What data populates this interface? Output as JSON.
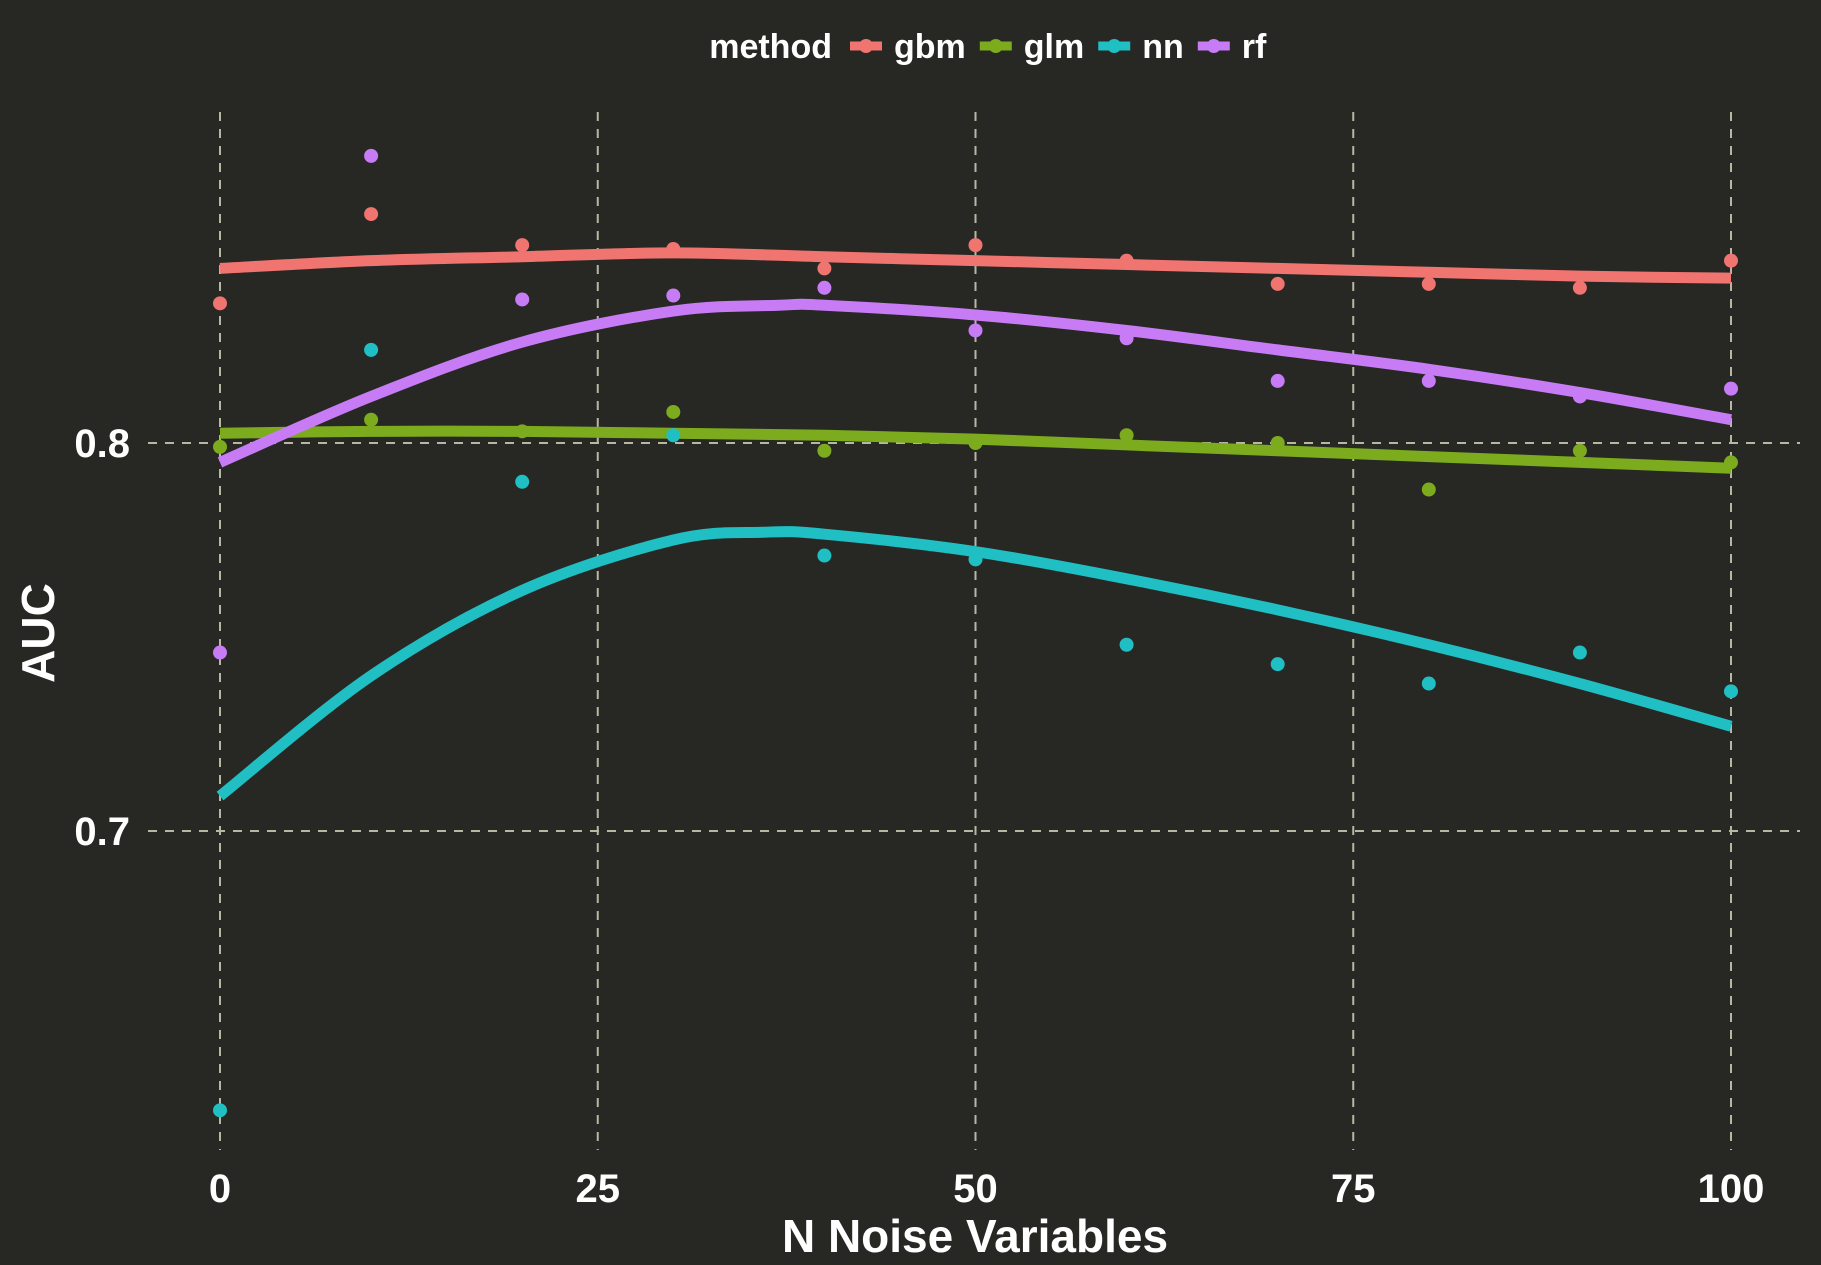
{
  "chart_data": {
    "type": "scatter",
    "title": "",
    "xlabel": "N Noise Variables",
    "ylabel": "AUC",
    "xlim": [
      0,
      100
    ],
    "ylim": [
      0.6,
      0.89
    ],
    "x_ticks": [
      0,
      25,
      50,
      75,
      100
    ],
    "x_tick_labels": [
      "0",
      "25",
      "50",
      "75",
      "100"
    ],
    "y_ticks": [
      0.7,
      0.8
    ],
    "y_tick_labels": [
      "0.7",
      "0.8"
    ],
    "grid": true,
    "background": "#272724",
    "legend": {
      "title": "method",
      "position": "top"
    },
    "series": [
      {
        "name": "gbm",
        "color": "#f07470",
        "points": [
          [
            0,
            0.836
          ],
          [
            10,
            0.859
          ],
          [
            20,
            0.851
          ],
          [
            30,
            0.85
          ],
          [
            40,
            0.845
          ],
          [
            50,
            0.851
          ],
          [
            60,
            0.847
          ],
          [
            70,
            0.841
          ],
          [
            80,
            0.841
          ],
          [
            90,
            0.84
          ],
          [
            100,
            0.847
          ]
        ],
        "smooth": [
          [
            0,
            0.845
          ],
          [
            10,
            0.847
          ],
          [
            20,
            0.848
          ],
          [
            30,
            0.849
          ],
          [
            40,
            0.848
          ],
          [
            50,
            0.847
          ],
          [
            60,
            0.846
          ],
          [
            70,
            0.845
          ],
          [
            80,
            0.844
          ],
          [
            90,
            0.843
          ],
          [
            100,
            0.8425
          ]
        ]
      },
      {
        "name": "glm",
        "color": "#7cab1e",
        "points": [
          [
            0,
            0.799
          ],
          [
            10,
            0.806
          ],
          [
            20,
            0.803
          ],
          [
            30,
            0.808
          ],
          [
            40,
            0.798
          ],
          [
            50,
            0.8
          ],
          [
            60,
            0.802
          ],
          [
            70,
            0.8
          ],
          [
            80,
            0.788
          ],
          [
            90,
            0.798
          ],
          [
            100,
            0.795
          ]
        ],
        "smooth": [
          [
            0,
            0.8025
          ],
          [
            10,
            0.803
          ],
          [
            20,
            0.803
          ],
          [
            30,
            0.8025
          ],
          [
            40,
            0.802
          ],
          [
            50,
            0.801
          ],
          [
            60,
            0.7995
          ],
          [
            70,
            0.798
          ],
          [
            80,
            0.7965
          ],
          [
            90,
            0.795
          ],
          [
            100,
            0.7935
          ]
        ]
      },
      {
        "name": "nn",
        "color": "#1fbfc3",
        "points": [
          [
            0,
            0.628
          ],
          [
            10,
            0.824
          ],
          [
            20,
            0.79
          ],
          [
            30,
            0.802
          ],
          [
            40,
            0.771
          ],
          [
            50,
            0.77
          ],
          [
            60,
            0.748
          ],
          [
            70,
            0.743
          ],
          [
            80,
            0.738
          ],
          [
            90,
            0.746
          ],
          [
            100,
            0.736
          ]
        ],
        "smooth": [
          [
            0,
            0.709
          ],
          [
            10,
            0.74
          ],
          [
            20,
            0.762
          ],
          [
            30,
            0.775
          ],
          [
            36,
            0.777
          ],
          [
            40,
            0.7765
          ],
          [
            50,
            0.772
          ],
          [
            60,
            0.765
          ],
          [
            70,
            0.757
          ],
          [
            80,
            0.748
          ],
          [
            90,
            0.738
          ],
          [
            100,
            0.727
          ]
        ]
      },
      {
        "name": "rf",
        "color": "#c77cf5",
        "points": [
          [
            0,
            0.746
          ],
          [
            10,
            0.874
          ],
          [
            20,
            0.837
          ],
          [
            30,
            0.838
          ],
          [
            40,
            0.84
          ],
          [
            50,
            0.829
          ],
          [
            60,
            0.827
          ],
          [
            70,
            0.816
          ],
          [
            80,
            0.816
          ],
          [
            90,
            0.812
          ],
          [
            100,
            0.814
          ]
        ],
        "smooth": [
          [
            0,
            0.795
          ],
          [
            10,
            0.812
          ],
          [
            20,
            0.826
          ],
          [
            30,
            0.834
          ],
          [
            37,
            0.8355
          ],
          [
            40,
            0.8355
          ],
          [
            50,
            0.833
          ],
          [
            60,
            0.829
          ],
          [
            70,
            0.824
          ],
          [
            80,
            0.819
          ],
          [
            90,
            0.813
          ],
          [
            100,
            0.806
          ]
        ]
      }
    ]
  }
}
